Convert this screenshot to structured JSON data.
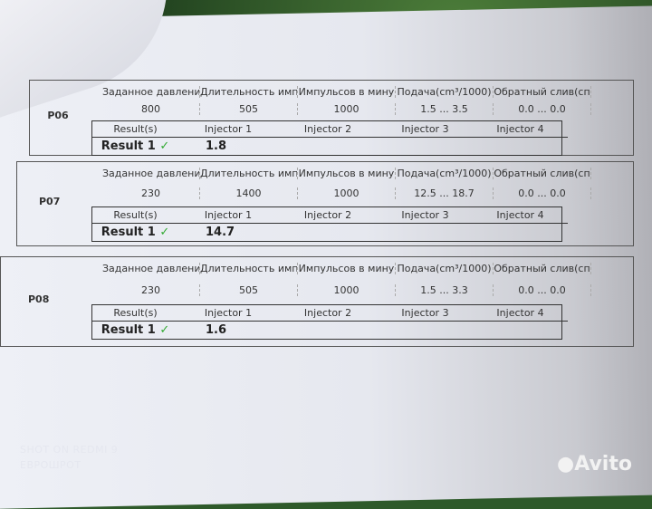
{
  "headers": [
    "Заданное давлени",
    "Длительность имп",
    "Импульсов в мину",
    "Подача(cm³/1000)",
    "Обратный слив(сп"
  ],
  "results_header": [
    "Result(s)",
    "Injector 1",
    "Injector 2",
    "Injector 3",
    "Injector 4"
  ],
  "blocks": [
    {
      "id": "P06",
      "values": [
        "800",
        "505",
        "1000",
        "1.5 ... 3.5",
        "0.0 ... 0.0"
      ],
      "result_label": "Result 1",
      "check": "✓",
      "result": "1.8"
    },
    {
      "id": "P07",
      "values": [
        "230",
        "1400",
        "1000",
        "12.5 ... 18.7",
        "0.0 ... 0.0"
      ],
      "result_label": "Result 1",
      "check": "✓",
      "result": "14.7"
    },
    {
      "id": "P08",
      "values": [
        "230",
        "505",
        "1000",
        "1.5 ... 3.3",
        "0.0 ... 0.0"
      ],
      "result_label": "Result 1",
      "check": "✓",
      "result": "1.6"
    }
  ],
  "watermark": {
    "line1": "SHOT ON REDMI 9",
    "line2": "ЕВРОШРОТ",
    "brand": "Avito"
  }
}
